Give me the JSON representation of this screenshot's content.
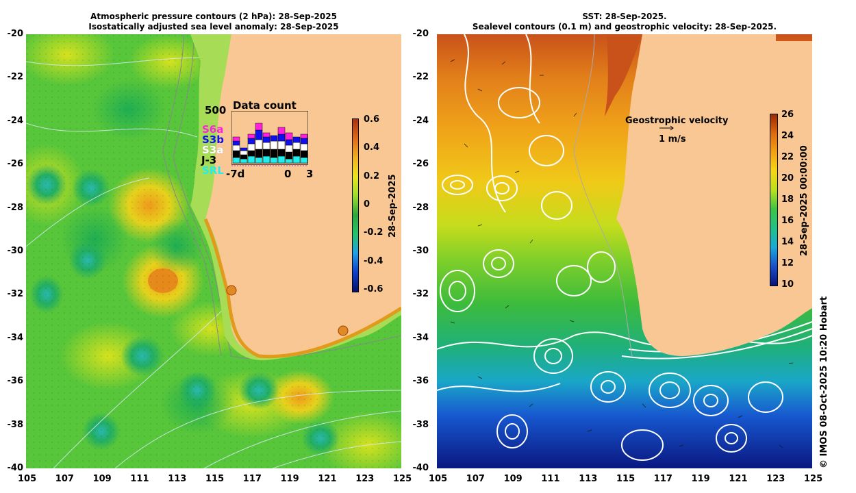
{
  "left_panel": {
    "title_line1": "Atmospheric pressure contours (2 hPa): 28-Sep-2025",
    "title_line2": "Isostatically adjusted sea level anomaly: 28-Sep-2025",
    "colorbar": {
      "ticks": [
        "0.6",
        "0.4",
        "0.2",
        "0",
        "-0.2",
        "-0.4",
        "-0.6"
      ],
      "label": "28-Sep-2025",
      "colors": [
        "#08106b",
        "#0b3fcc",
        "#1f9fe8",
        "#24c46a",
        "#2ba83c",
        "#9cde2a",
        "#e9e61c",
        "#f3b01f",
        "#e0681a",
        "#a8300e"
      ]
    }
  },
  "right_panel": {
    "title_line1": "SST: 28-Sep-2025.",
    "title_line2": "Sealevel contours (0.1 m) and geostrophic velocity: 28-Sep-2025.",
    "colorbar": {
      "ticks": [
        "26",
        "24",
        "22",
        "20",
        "18",
        "16",
        "14",
        "12",
        "10"
      ],
      "label": "28-Sep-2025 00:00:00",
      "colors": [
        "#0a137a",
        "#1a4ec8",
        "#1aa8d8",
        "#22c08a",
        "#3cc447",
        "#b8e11c",
        "#f5d816",
        "#f3a312",
        "#dd6a0e",
        "#9a2a05"
      ]
    },
    "geostrophic_label": "Geostrophic velocity",
    "velocity_scale_label": "1 m/s"
  },
  "data_count": {
    "title": "Data count",
    "y_max_label": "500",
    "missions": [
      {
        "name": "S6a",
        "color": "#ff22dd"
      },
      {
        "name": "S3b",
        "color": "#1010ee"
      },
      {
        "name": "S3a",
        "color": "#ffffff"
      },
      {
        "name": "J-3",
        "color": "#000000"
      },
      {
        "name": "SRL",
        "color": "#22eeee"
      }
    ],
    "x_labels": [
      "-7d",
      "0",
      "3"
    ]
  },
  "x_axis_ticks": [
    "105",
    "107",
    "109",
    "111",
    "113",
    "115",
    "117",
    "119",
    "121",
    "123",
    "125"
  ],
  "y_axis_ticks": [
    "-20",
    "-22",
    "-24",
    "-26",
    "-28",
    "-30",
    "-32",
    "-34",
    "-36",
    "-38",
    "-40"
  ],
  "credit": "© IMOS 08-Oct-2025 10:20 Hobart"
}
